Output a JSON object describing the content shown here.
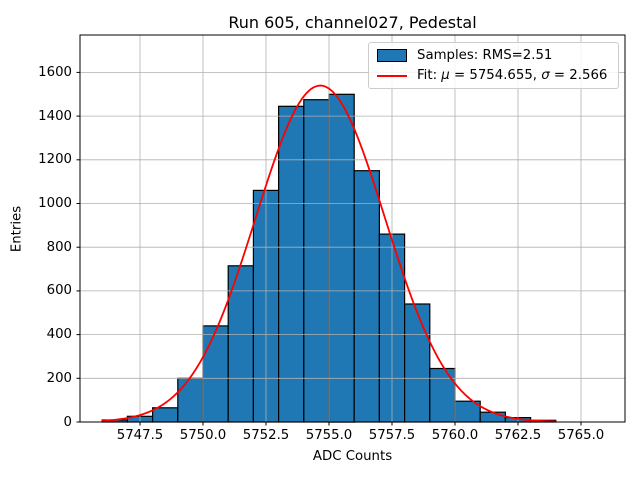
{
  "title": "Run 605, channel027, Pedestal",
  "axes": {
    "xlabel": "ADC Counts",
    "ylabel": "Entries"
  },
  "legend": {
    "samples": {
      "label": "Samples: RMS=2.51",
      "swatch_color": "#1f77b4",
      "swatch_edge_color": "#000000"
    },
    "fit": {
      "line_color": "#ff0000",
      "parts": {
        "prefix": "Fit: ",
        "mu_symbol": "μ",
        "mu_value": " = 5754.655, ",
        "sigma_symbol": "σ",
        "sigma_value": " = 2.566"
      }
    }
  },
  "chart_data": {
    "type": "bar",
    "subtype": "histogram-with-gaussian-fit",
    "title": "Run 605, channel027, Pedestal",
    "xlabel": "ADC Counts",
    "ylabel": "Entries",
    "bin_edges": [
      5746,
      5747,
      5748,
      5749,
      5750,
      5751,
      5752,
      5753,
      5754,
      5755,
      5756,
      5757,
      5758,
      5759,
      5760,
      5761,
      5762,
      5763,
      5764
    ],
    "counts": [
      9,
      26,
      65,
      200,
      440,
      715,
      1060,
      1445,
      1475,
      1500,
      1150,
      860,
      540,
      245,
      95,
      45,
      20,
      8
    ],
    "samples_rms": 2.51,
    "fit_curve": {
      "shape": "gaussian",
      "mu": 5754.655,
      "sigma": 2.566,
      "amplitude": 1540,
      "x_start": 5746,
      "x_end": 5764,
      "color": "#ff0000"
    },
    "xticks": [
      "5747.5",
      "5750.0",
      "5752.5",
      "5755.0",
      "5757.5",
      "5760.0",
      "5762.5",
      "5765.0"
    ],
    "xtick_values": [
      5747.5,
      5750.0,
      5752.5,
      5755.0,
      5757.5,
      5760.0,
      5762.5,
      5765.0
    ],
    "yticks": [
      0,
      200,
      400,
      600,
      800,
      1000,
      1200,
      1400,
      1600
    ],
    "xlim": [
      5745.13,
      5766.75
    ],
    "ylim": [
      0,
      1770
    ],
    "grid": true,
    "grid_on_top_of_bars": true,
    "legend_position": "upper right",
    "bar_color": "#1f77b4",
    "bar_edge_color": "#000000",
    "grid_color": "#b0b0b0",
    "spine_color": "#000000"
  }
}
